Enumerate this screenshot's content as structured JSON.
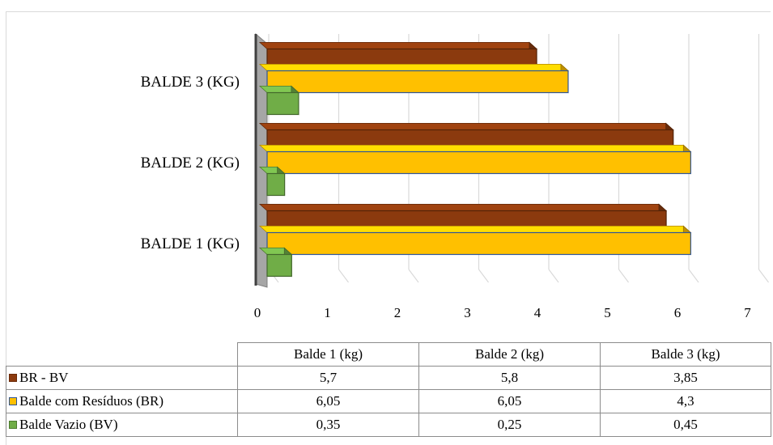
{
  "chart_data": {
    "type": "bar",
    "orientation": "horizontal",
    "style": "3d",
    "categories": [
      "BALDE 1 (KG)",
      "BALDE 2 (KG)",
      "BALDE 3 (KG)"
    ],
    "series": [
      {
        "name": "BR - BV",
        "values": [
          5.7,
          5.8,
          3.85
        ],
        "color": "#8B3A0E"
      },
      {
        "name": "Balde com Resíduos (BR)",
        "values": [
          6.05,
          6.05,
          4.3
        ],
        "color": "#FFC000"
      },
      {
        "name": "Balde Vazio (BV)",
        "values": [
          0.35,
          0.25,
          0.45
        ],
        "color": "#70AD47"
      }
    ],
    "xlim": [
      0,
      7
    ],
    "x_ticks": [
      "0",
      "1",
      "2",
      "3",
      "4",
      "5",
      "6",
      "7"
    ],
    "grid": true,
    "legend": "data table",
    "data_table": {
      "columns": [
        "Balde 1 (kg)",
        "Balde 2 (kg)",
        "Balde 3 (kg)"
      ],
      "rows": [
        {
          "label": "BR - BV",
          "cells": [
            "5,7",
            "5,8",
            "3,85"
          ]
        },
        {
          "label": "Balde com Resíduos (BR)",
          "cells": [
            "6,05",
            "6,05",
            "4,3"
          ]
        },
        {
          "label": "Balde Vazio (BV)",
          "cells": [
            "0,35",
            "0,25",
            "0,45"
          ]
        }
      ]
    }
  }
}
